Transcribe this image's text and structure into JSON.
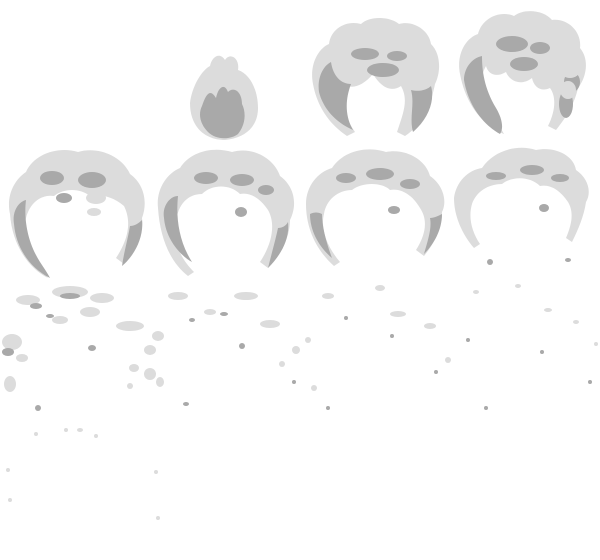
{
  "sheet": {
    "kind": "sprite-sheet",
    "subject": "smoke-puff-animation",
    "columns": 4,
    "rows": 3,
    "frame_count": 11,
    "colors": {
      "light": "#dcdcdc",
      "shadow": "#a9a9a9",
      "background": "#ffffff"
    },
    "frames": [
      {
        "index": 1,
        "stage": "bud"
      },
      {
        "index": 2,
        "stage": "grow"
      },
      {
        "index": 3,
        "stage": "grow"
      },
      {
        "index": 4,
        "stage": "ring"
      },
      {
        "index": 5,
        "stage": "ring"
      },
      {
        "index": 6,
        "stage": "ring"
      },
      {
        "index": 7,
        "stage": "ring"
      },
      {
        "index": 8,
        "stage": "dissipate"
      },
      {
        "index": 9,
        "stage": "dissipate"
      },
      {
        "index": 10,
        "stage": "dissipate"
      },
      {
        "index": 11,
        "stage": "dissipate"
      }
    ]
  }
}
